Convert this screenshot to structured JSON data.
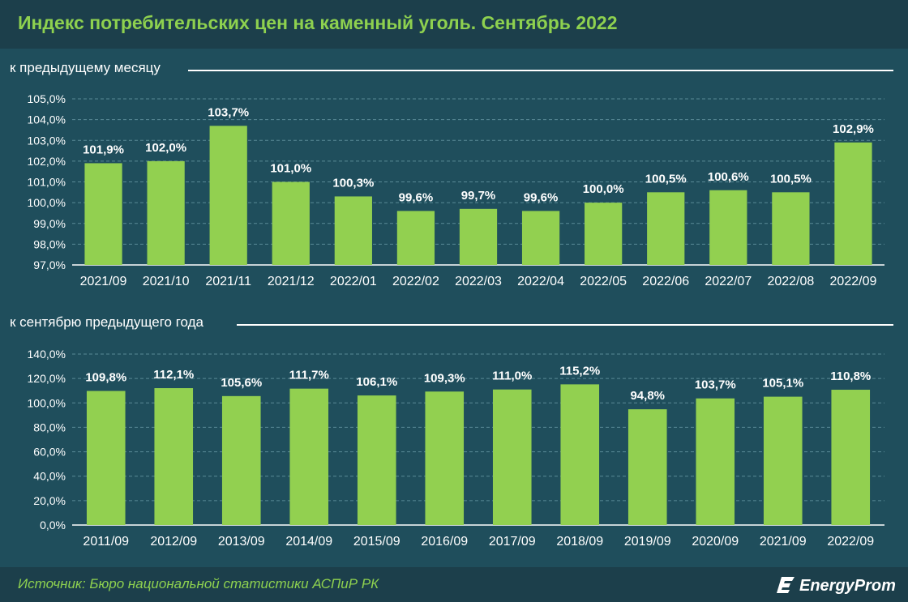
{
  "header": {
    "title": "Индекс потребительских цен на каменный уголь. Сентябрь 2022"
  },
  "sections": [
    {
      "label": "к предыдущему месяцу"
    },
    {
      "label": "к сентябрю предыдущего года"
    }
  ],
  "footer": {
    "source": "Источник: Бюро национальной статистики АСПиР РК",
    "brand": "EnergyProm"
  },
  "colors": {
    "bar": "#92d050",
    "background": "#1f4e5c",
    "header": "#1c3f4b",
    "title": "#8ed14f",
    "text": "#ffffff",
    "grid": "#5a8a96"
  },
  "chart_data": [
    {
      "type": "bar",
      "title": "к предыдущему месяцу",
      "xlabel": "",
      "ylabel": "",
      "categories": [
        "2021/09",
        "2021/10",
        "2021/11",
        "2021/12",
        "2022/01",
        "2022/02",
        "2022/03",
        "2022/04",
        "2022/05",
        "2022/06",
        "2022/07",
        "2022/08",
        "2022/09"
      ],
      "values": [
        101.9,
        102.0,
        103.7,
        101.0,
        100.3,
        99.6,
        99.7,
        99.6,
        100.0,
        100.5,
        100.6,
        100.5,
        102.9
      ],
      "value_labels": [
        "101,9%",
        "102,0%",
        "103,7%",
        "101,0%",
        "100,3%",
        "99,6%",
        "99,7%",
        "99,6%",
        "100,0%",
        "100,5%",
        "100,6%",
        "100,5%",
        "102,9%"
      ],
      "ylim": [
        97,
        105
      ],
      "yticks": [
        97,
        98,
        99,
        100,
        101,
        102,
        103,
        104,
        105
      ],
      "ytick_labels": [
        "97,0%",
        "98,0%",
        "99,0%",
        "100,0%",
        "101,0%",
        "102,0%",
        "103,0%",
        "104,0%",
        "105,0%"
      ],
      "grid": true,
      "legend": "none"
    },
    {
      "type": "bar",
      "title": "к сентябрю предыдущего года",
      "xlabel": "",
      "ylabel": "",
      "categories": [
        "2011/09",
        "2012/09",
        "2013/09",
        "2014/09",
        "2015/09",
        "2016/09",
        "2017/09",
        "2018/09",
        "2019/09",
        "2020/09",
        "2021/09",
        "2022/09"
      ],
      "values": [
        109.8,
        112.1,
        105.6,
        111.7,
        106.1,
        109.3,
        111.0,
        115.2,
        94.8,
        103.7,
        105.1,
        110.8
      ],
      "value_labels": [
        "109,8%",
        "112,1%",
        "105,6%",
        "111,7%",
        "106,1%",
        "109,3%",
        "111,0%",
        "115,2%",
        "94,8%",
        "103,7%",
        "105,1%",
        "110,8%"
      ],
      "ylim": [
        0,
        140
      ],
      "yticks": [
        0,
        20,
        40,
        60,
        80,
        100,
        120,
        140
      ],
      "ytick_labels": [
        "0,0%",
        "20,0%",
        "40,0%",
        "60,0%",
        "80,0%",
        "100,0%",
        "120,0%",
        "140,0%"
      ],
      "grid": true,
      "legend": "none"
    }
  ]
}
